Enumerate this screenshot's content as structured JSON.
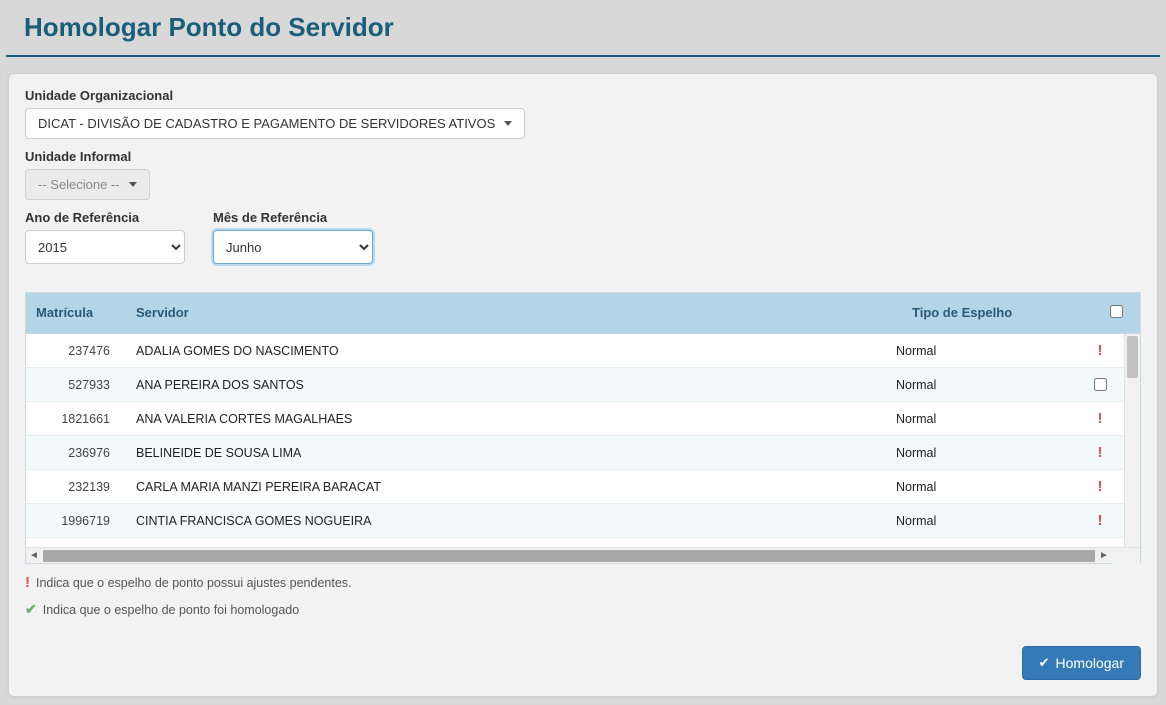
{
  "page": {
    "title": "Homologar Ponto do Servidor"
  },
  "colors": {
    "title": "#1a5e7a",
    "panel_bg": "#f2f2f2",
    "header_bg": "#b4d5e8",
    "header_text": "#2b5a76",
    "row_alt_bg": "#f3f8fb",
    "primary_btn_bg": "#337ab7",
    "primary_btn_border": "#2e6da4",
    "warn": "#d9534f",
    "success": "#5cb85c",
    "body_bg": "#d8d8d8"
  },
  "filters": {
    "unidade_org": {
      "label": "Unidade Organizacional",
      "value": "DICAT - DIVISÃO DE CADASTRO E PAGAMENTO DE SERVIDORES ATIVOS"
    },
    "unidade_informal": {
      "label": "Unidade Informal",
      "value": "-- Selecione --",
      "disabled": true
    },
    "ano": {
      "label": "Ano de Referência",
      "value": "2015"
    },
    "mes": {
      "label": "Mês de Referência",
      "value": "Junho",
      "focused": true
    }
  },
  "table": {
    "columns": {
      "matricula": "Matrícula",
      "servidor": "Servidor",
      "tipo": "Tipo de Espelho"
    },
    "rows": [
      {
        "matricula": "237476",
        "servidor": "ADALIA GOMES DO NASCIMENTO",
        "tipo": "Normal",
        "status": "warn"
      },
      {
        "matricula": "527933",
        "servidor": "ANA PEREIRA DOS SANTOS",
        "tipo": "Normal",
        "status": "checkbox"
      },
      {
        "matricula": "1821661",
        "servidor": "ANA VALERIA CORTES MAGALHAES",
        "tipo": "Normal",
        "status": "warn"
      },
      {
        "matricula": "236976",
        "servidor": "BELINEIDE DE SOUSA LIMA",
        "tipo": "Normal",
        "status": "warn"
      },
      {
        "matricula": "232139",
        "servidor": "CARLA MARIA MANZI PEREIRA BARACAT",
        "tipo": "Normal",
        "status": "warn"
      },
      {
        "matricula": "1996719",
        "servidor": "CINTIA FRANCISCA GOMES NOGUEIRA",
        "tipo": "Normal",
        "status": "warn"
      }
    ]
  },
  "legend": {
    "warn_text": "Indica que o espelho de ponto possui ajustes pendentes.",
    "ok_text": "Indica que o espelho de ponto foi homologado"
  },
  "actions": {
    "homologar_label": "Homologar"
  }
}
